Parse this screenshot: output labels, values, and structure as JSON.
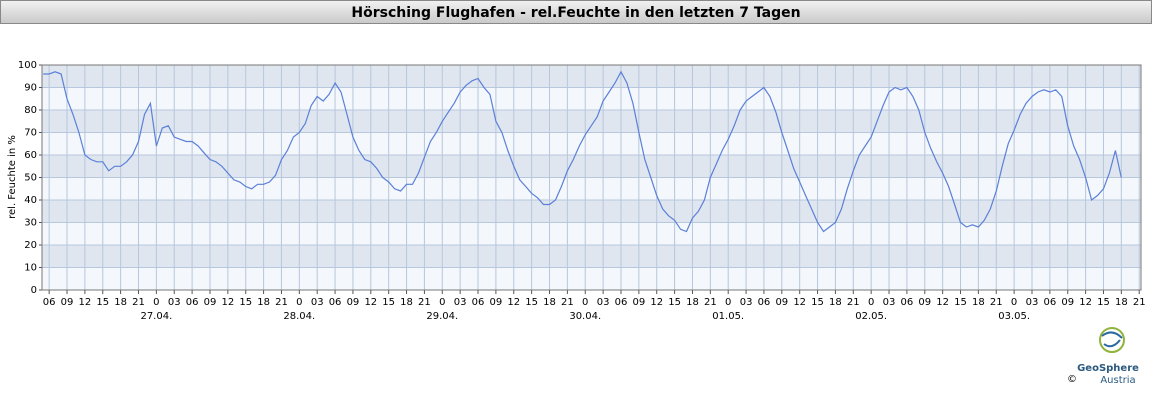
{
  "chart_data": {
    "type": "line",
    "title": "Hörsching Flughafen - rel.Feuchte in den letzten 7 Tagen",
    "y_label": "rel. Feuchte in %",
    "color": "#5b80d8",
    "grid": true,
    "ylim": [
      0,
      100
    ],
    "yticks": [
      0,
      10,
      20,
      30,
      40,
      50,
      60,
      70,
      80,
      90,
      100
    ],
    "xlim": [
      4.8,
      189.3
    ],
    "xticks": [
      {
        "value": 6,
        "label": "06"
      },
      {
        "value": 9,
        "label": "09"
      },
      {
        "value": 12,
        "label": "12"
      },
      {
        "value": 15,
        "label": "15"
      },
      {
        "value": 18,
        "label": "18"
      },
      {
        "value": 21,
        "label": "21"
      },
      {
        "value": 24,
        "label": "0"
      },
      {
        "value": 27,
        "label": "03"
      },
      {
        "value": 30,
        "label": "06"
      },
      {
        "value": 33,
        "label": "09"
      },
      {
        "value": 36,
        "label": "12"
      },
      {
        "value": 39,
        "label": "15"
      },
      {
        "value": 42,
        "label": "18"
      },
      {
        "value": 45,
        "label": "21"
      },
      {
        "value": 48,
        "label": "0"
      },
      {
        "value": 51,
        "label": "03"
      },
      {
        "value": 54,
        "label": "06"
      },
      {
        "value": 57,
        "label": "09"
      },
      {
        "value": 60,
        "label": "12"
      },
      {
        "value": 63,
        "label": "15"
      },
      {
        "value": 66,
        "label": "18"
      },
      {
        "value": 69,
        "label": "21"
      },
      {
        "value": 72,
        "label": "0"
      },
      {
        "value": 75,
        "label": "03"
      },
      {
        "value": 78,
        "label": "06"
      },
      {
        "value": 81,
        "label": "09"
      },
      {
        "value": 84,
        "label": "12"
      },
      {
        "value": 87,
        "label": "15"
      },
      {
        "value": 90,
        "label": "18"
      },
      {
        "value": 93,
        "label": "21"
      },
      {
        "value": 96,
        "label": "0"
      },
      {
        "value": 99,
        "label": "03"
      },
      {
        "value": 102,
        "label": "06"
      },
      {
        "value": 105,
        "label": "09"
      },
      {
        "value": 108,
        "label": "12"
      },
      {
        "value": 111,
        "label": "15"
      },
      {
        "value": 114,
        "label": "18"
      },
      {
        "value": 117,
        "label": "21"
      },
      {
        "value": 120,
        "label": "0"
      },
      {
        "value": 123,
        "label": "03"
      },
      {
        "value": 126,
        "label": "06"
      },
      {
        "value": 129,
        "label": "09"
      },
      {
        "value": 132,
        "label": "12"
      },
      {
        "value": 135,
        "label": "15"
      },
      {
        "value": 138,
        "label": "18"
      },
      {
        "value": 141,
        "label": "21"
      },
      {
        "value": 144,
        "label": "0"
      },
      {
        "value": 147,
        "label": "03"
      },
      {
        "value": 150,
        "label": "06"
      },
      {
        "value": 153,
        "label": "09"
      },
      {
        "value": 156,
        "label": "12"
      },
      {
        "value": 159,
        "label": "15"
      },
      {
        "value": 162,
        "label": "18"
      },
      {
        "value": 165,
        "label": "21"
      },
      {
        "value": 168,
        "label": "0"
      },
      {
        "value": 171,
        "label": "03"
      },
      {
        "value": 174,
        "label": "06"
      },
      {
        "value": 177,
        "label": "09"
      },
      {
        "value": 180,
        "label": "12"
      },
      {
        "value": 183,
        "label": "15"
      },
      {
        "value": 186,
        "label": "18"
      },
      {
        "value": 189,
        "label": "21"
      }
    ],
    "date_labels": [
      {
        "value": 24,
        "label": "27.04."
      },
      {
        "value": 48,
        "label": "28.04."
      },
      {
        "value": 72,
        "label": "29.04."
      },
      {
        "value": 96,
        "label": "30.04."
      },
      {
        "value": 120,
        "label": "01.05."
      },
      {
        "value": 144,
        "label": "02.05."
      },
      {
        "value": 168,
        "label": "03.05."
      }
    ],
    "x": [
      5,
      6,
      7,
      8,
      9,
      10,
      11,
      12,
      13,
      14,
      15,
      16,
      17,
      18,
      19,
      20,
      21,
      22,
      23,
      24,
      25,
      26,
      27,
      28,
      29,
      30,
      31,
      32,
      33,
      34,
      35,
      36,
      37,
      38,
      39,
      40,
      41,
      42,
      43,
      44,
      45,
      46,
      47,
      48,
      49,
      50,
      51,
      52,
      53,
      54,
      55,
      56,
      57,
      58,
      59,
      60,
      61,
      62,
      63,
      64,
      65,
      66,
      67,
      68,
      69,
      70,
      71,
      72,
      73,
      74,
      75,
      76,
      77,
      78,
      79,
      80,
      81,
      82,
      83,
      84,
      85,
      86,
      87,
      88,
      89,
      90,
      91,
      92,
      93,
      94,
      95,
      96,
      97,
      98,
      99,
      100,
      101,
      102,
      103,
      104,
      105,
      106,
      107,
      108,
      109,
      110,
      111,
      112,
      113,
      114,
      115,
      116,
      117,
      118,
      119,
      120,
      121,
      122,
      123,
      124,
      125,
      126,
      127,
      128,
      129,
      130,
      131,
      132,
      133,
      134,
      135,
      136,
      137,
      138,
      139,
      140,
      141,
      142,
      143,
      144,
      145,
      146,
      147,
      148,
      149,
      150,
      151,
      152,
      153,
      154,
      155,
      156,
      157,
      158,
      159,
      160,
      161,
      162,
      163,
      164,
      165,
      166,
      167,
      168,
      169,
      170,
      171,
      172,
      173,
      174,
      175,
      176,
      177,
      178,
      179,
      180,
      181,
      182,
      183,
      184,
      185,
      186
    ],
    "values": [
      96,
      96,
      97,
      96,
      85,
      78,
      70,
      60,
      58,
      57,
      57,
      53,
      55,
      55,
      57,
      60,
      66,
      78,
      83,
      64,
      72,
      73,
      68,
      67,
      66,
      66,
      64,
      61,
      58,
      57,
      55,
      52,
      49,
      48,
      46,
      45,
      47,
      47,
      48,
      51,
      58,
      62,
      68,
      70,
      74,
      82,
      86,
      84,
      87,
      92,
      88,
      78,
      68,
      62,
      58,
      57,
      54,
      50,
      48,
      45,
      44,
      47,
      47,
      52,
      59,
      66,
      70,
      75,
      79,
      83,
      88,
      91,
      93,
      94,
      90,
      87,
      75,
      70,
      62,
      55,
      49,
      46,
      43,
      41,
      38,
      38,
      40,
      46,
      53,
      58,
      64,
      69,
      73,
      77,
      84,
      88,
      92,
      97,
      92,
      83,
      70,
      58,
      50,
      42,
      36,
      33,
      31,
      27,
      26,
      32,
      35,
      40,
      50,
      56,
      62,
      67,
      73,
      80,
      84,
      86,
      88,
      90,
      86,
      79,
      70,
      62,
      54,
      48,
      42,
      36,
      30,
      26,
      28,
      30,
      36,
      45,
      53,
      60,
      64,
      68,
      75,
      82,
      88,
      90,
      89,
      90,
      86,
      80,
      70,
      63,
      57,
      52,
      46,
      38,
      30,
      28,
      29,
      28,
      31,
      36,
      44,
      55,
      65,
      71,
      78,
      83,
      86,
      88,
      89,
      88,
      89,
      86,
      73,
      64,
      58,
      50,
      40,
      42,
      45,
      52,
      62,
      50
    ],
    "logo": {
      "name": "GeoSphere",
      "sub": "Austria",
      "copyright": "©"
    }
  }
}
